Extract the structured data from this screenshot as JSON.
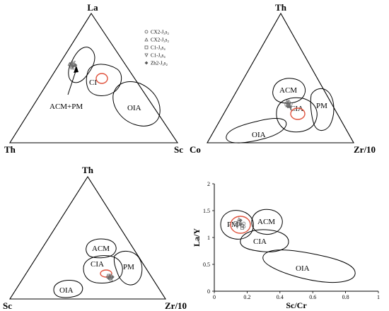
{
  "legend": [
    {
      "label": "CX2-J₃s₂",
      "marker": "circle"
    },
    {
      "label": "CX2-J₃s₂",
      "marker": "triangle-up"
    },
    {
      "label": "C1-J₃s₄",
      "marker": "square"
    },
    {
      "label": "C1-J₃s₄",
      "marker": "triangle-down"
    },
    {
      "label": "Zh2-J₃s₂",
      "marker": "diamond"
    }
  ],
  "panels": {
    "la_th_sc": {
      "vertices": {
        "top": "La",
        "left": "Th",
        "right": "Sc"
      },
      "fields": [
        "ACM+PM",
        "CI",
        "OIA"
      ]
    },
    "th_co_zr": {
      "vertices": {
        "top": "Th",
        "left": "Co",
        "right": "Zr/10"
      },
      "fields": [
        "ACM",
        "CIA",
        "PM",
        "OIA"
      ]
    },
    "th_sc_zr": {
      "vertices": {
        "top": "Th",
        "left": "Sc",
        "right": "Zr/10"
      },
      "fields": [
        "ACM",
        "CIA",
        "PM",
        "OIA"
      ]
    },
    "scatter": {
      "xlabel": "Sc/Cr",
      "ylabel": "La/Y",
      "fields": [
        "PM",
        "ACM",
        "CIA",
        "OIA"
      ]
    }
  },
  "colors": {
    "line": "#000000",
    "highlight": "#e0533d",
    "marker": "#6b6b6b"
  },
  "chart_data": [
    {
      "type": "scatter",
      "subtype": "ternary",
      "vertices": [
        "La",
        "Th",
        "Sc"
      ],
      "points": [
        [
          0.6,
          0.32,
          0.08
        ],
        [
          0.59,
          0.33,
          0.08
        ],
        [
          0.61,
          0.31,
          0.08
        ],
        [
          0.6,
          0.31,
          0.09
        ],
        [
          0.59,
          0.32,
          0.09
        ],
        [
          0.61,
          0.32,
          0.07
        ],
        [
          0.58,
          0.33,
          0.09
        ],
        [
          0.6,
          0.33,
          0.07
        ],
        [
          0.62,
          0.3,
          0.08
        ],
        [
          0.6,
          0.3,
          0.1
        ],
        [
          0.58,
          0.32,
          0.1
        ],
        [
          0.61,
          0.33,
          0.06
        ]
      ]
    },
    {
      "type": "scatter",
      "subtype": "ternary",
      "vertices": [
        "Th",
        "Co",
        "Zr/10"
      ],
      "points": [
        [
          0.3,
          0.3,
          0.4
        ],
        [
          0.29,
          0.3,
          0.41
        ],
        [
          0.31,
          0.29,
          0.4
        ],
        [
          0.3,
          0.29,
          0.41
        ],
        [
          0.28,
          0.31,
          0.41
        ],
        [
          0.31,
          0.3,
          0.39
        ],
        [
          0.29,
          0.31,
          0.4
        ],
        [
          0.3,
          0.31,
          0.39
        ],
        [
          0.32,
          0.29,
          0.39
        ],
        [
          0.28,
          0.3,
          0.42
        ],
        [
          0.3,
          0.28,
          0.42
        ],
        [
          0.29,
          0.29,
          0.42
        ]
      ]
    },
    {
      "type": "scatter",
      "subtype": "ternary",
      "vertices": [
        "Th",
        "Sc",
        "Zr/10"
      ],
      "points": [
        [
          0.18,
          0.27,
          0.55
        ],
        [
          0.17,
          0.27,
          0.56
        ],
        [
          0.18,
          0.26,
          0.56
        ],
        [
          0.19,
          0.26,
          0.55
        ],
        [
          0.17,
          0.28,
          0.55
        ],
        [
          0.18,
          0.28,
          0.54
        ],
        [
          0.16,
          0.27,
          0.57
        ],
        [
          0.19,
          0.27,
          0.54
        ],
        [
          0.17,
          0.26,
          0.57
        ],
        [
          0.18,
          0.25,
          0.57
        ]
      ]
    },
    {
      "type": "scatter",
      "xlabel": "Sc/Cr",
      "ylabel": "La/Y",
      "xlim": [
        0,
        1
      ],
      "ylim": [
        0,
        2
      ],
      "xticks": [
        "0",
        "0.2",
        "0.4",
        "0.6",
        "0.8",
        "1"
      ],
      "yticks": [
        "0",
        "0.5",
        "1",
        "1.5",
        "2"
      ],
      "x": [
        0.15,
        0.16,
        0.17,
        0.14,
        0.16,
        0.18,
        0.15,
        0.17,
        0.13,
        0.16,
        0.18,
        0.15
      ],
      "y": [
        1.25,
        1.28,
        1.22,
        1.2,
        1.32,
        1.26,
        1.3,
        1.18,
        1.27,
        1.24,
        1.2,
        1.34
      ]
    }
  ]
}
